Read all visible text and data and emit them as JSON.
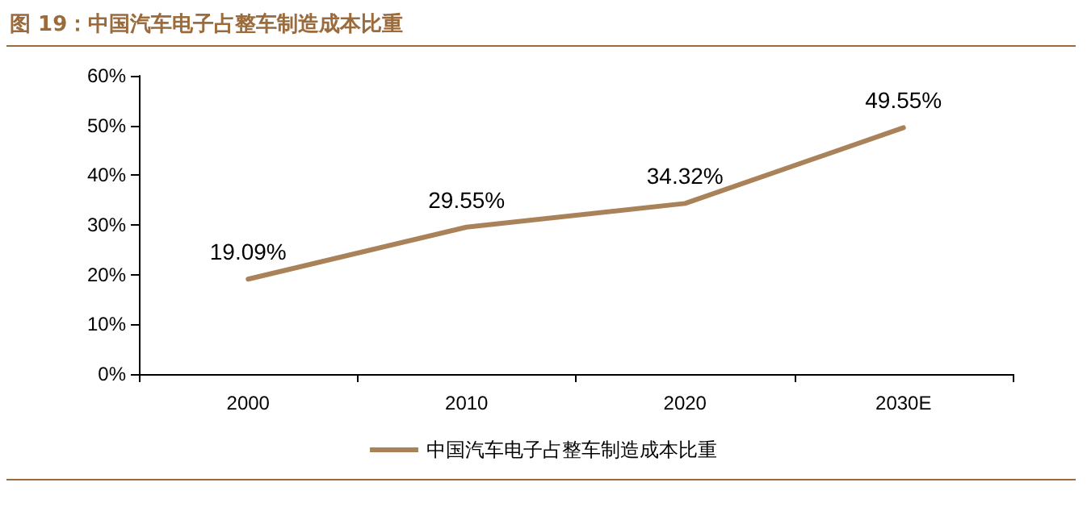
{
  "chart_data": {
    "type": "line",
    "title": "图 19：中国汽车电子占整车制造成本比重",
    "categories": [
      "2000",
      "2010",
      "2020",
      "2030E"
    ],
    "series": [
      {
        "name": "中国汽车电子占整车制造成本比重",
        "color": "#a9825a",
        "values": [
          19.09,
          29.55,
          34.32,
          49.55
        ],
        "value_labels": [
          "19.09%",
          "29.55%",
          "34.32%",
          "49.55%"
        ]
      }
    ],
    "ylim": [
      0,
      60
    ],
    "yticks": [
      {
        "value": 0,
        "label": "0%"
      },
      {
        "value": 10,
        "label": "10%"
      },
      {
        "value": 20,
        "label": "20%"
      },
      {
        "value": 30,
        "label": "30%"
      },
      {
        "value": 40,
        "label": "40%"
      },
      {
        "value": 50,
        "label": "50%"
      },
      {
        "value": 60,
        "label": "60%"
      }
    ],
    "grid": false,
    "legend": "bottom",
    "marker": "none",
    "line_style": "solid"
  }
}
